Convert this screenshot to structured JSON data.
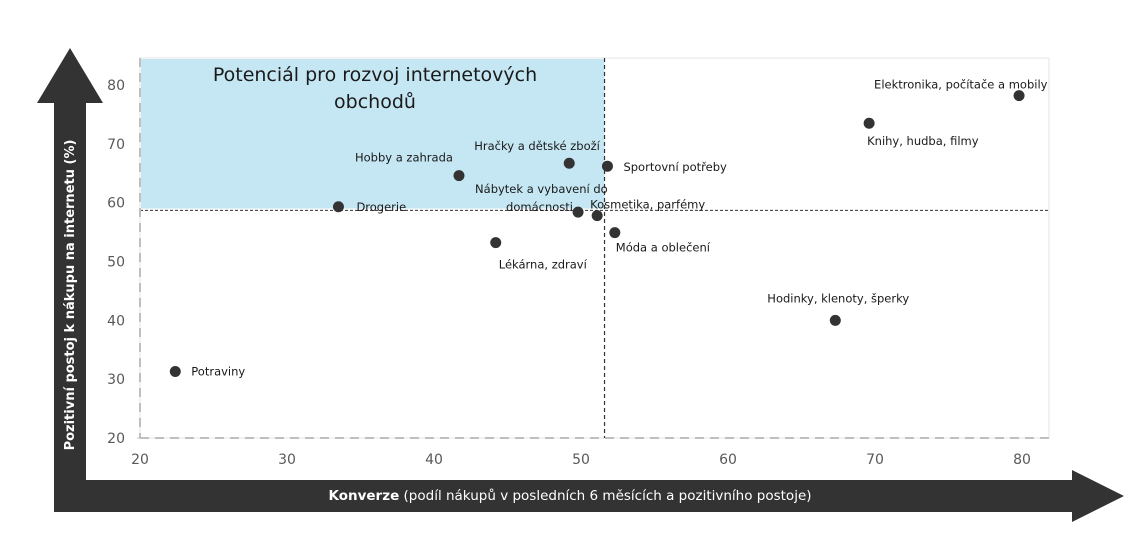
{
  "chart_data": {
    "type": "scatter",
    "xlabel_bold": "Konverze",
    "xlabel_rest": " (podíl nákupů v posledních 6 měsících a pozitivního postoje)",
    "ylabel": "Pozitivní postoj k nákupu na internetu (%)",
    "xlim": [
      20,
      82
    ],
    "ylim": [
      20,
      85
    ],
    "xticks": [
      20,
      30,
      40,
      50,
      60,
      70,
      80
    ],
    "yticks": [
      20,
      30,
      40,
      50,
      60,
      70,
      80
    ],
    "grid": false,
    "highlight_zone": {
      "title_line1": "Potenciál pro rozvoj internetových",
      "title_line2": "obchodů",
      "x_range": [
        20,
        51.6
      ],
      "y_range": [
        59,
        85
      ],
      "color": "#c5e7f3"
    },
    "reference_lines": {
      "x": 51.6,
      "y": 58.7
    },
    "point_color": "#333333",
    "points": [
      {
        "label": "Elektronika, počítače a mobily",
        "x": 79.8,
        "y": 78.2
      },
      {
        "label": "Knihy, hudba, filmy",
        "x": 69.6,
        "y": 73.5
      },
      {
        "label": "Hračky a dětské zboží",
        "x": 49.2,
        "y": 66.7
      },
      {
        "label": "Sportovní potřeby",
        "x": 51.8,
        "y": 66.2
      },
      {
        "label": "Hobby a zahrada",
        "x": 41.7,
        "y": 64.6
      },
      {
        "label": "Drogerie",
        "x": 33.5,
        "y": 59.3
      },
      {
        "label": "Nábytek a vybavení do domácnosti",
        "label_line1": "Nábytek a vybavení do",
        "label_line2": "domácnosti",
        "x": 49.8,
        "y": 58.4
      },
      {
        "label": "Kosmetika, parfémy",
        "x": 51.1,
        "y": 57.8
      },
      {
        "label": "Móda a oblečení",
        "x": 52.3,
        "y": 54.9
      },
      {
        "label": "Lékárna, zdraví",
        "x": 44.2,
        "y": 53.2
      },
      {
        "label": "Hodinky, klenoty, šperky",
        "x": 67.3,
        "y": 40.0
      },
      {
        "label": "Potraviny",
        "x": 22.4,
        "y": 31.3
      }
    ]
  }
}
